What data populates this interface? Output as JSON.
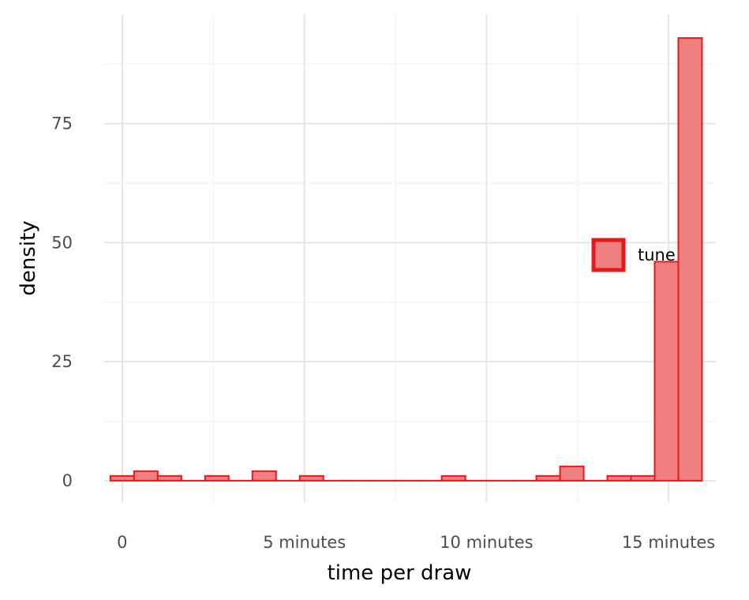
{
  "chart_data": {
    "type": "bar",
    "xlabel": "time per draw",
    "ylabel": "density",
    "xlim": [
      -0.5,
      16.3
    ],
    "ylim": [
      -4.5,
      98
    ],
    "x_ticks": [
      {
        "value": 0,
        "label": "0"
      },
      {
        "value": 5,
        "label": "5 minutes"
      },
      {
        "value": 10,
        "label": "10 minutes"
      },
      {
        "value": 15,
        "label": "15 minutes"
      }
    ],
    "y_ticks": [
      {
        "value": 0,
        "label": "0"
      },
      {
        "value": 25,
        "label": "25"
      },
      {
        "value": 50,
        "label": "50"
      },
      {
        "value": 75,
        "label": "75"
      }
    ],
    "grid": true,
    "legend": {
      "position": "right-middle",
      "entries": [
        {
          "label": "tune"
        }
      ]
    },
    "series": [
      {
        "name": "tune",
        "bin_width": 0.65,
        "bin_start": -0.33,
        "values": [
          1,
          2,
          1,
          0,
          1,
          0,
          2,
          0,
          1,
          0,
          0,
          0,
          0,
          0,
          1,
          0,
          0,
          0,
          1,
          3,
          0,
          1,
          1,
          46,
          93
        ]
      }
    ],
    "colors": {
      "fill": "#f08080",
      "stroke": "#e41a1c",
      "grid_major": "#e6e6e6",
      "grid_minor": "#f4f4f4"
    }
  }
}
